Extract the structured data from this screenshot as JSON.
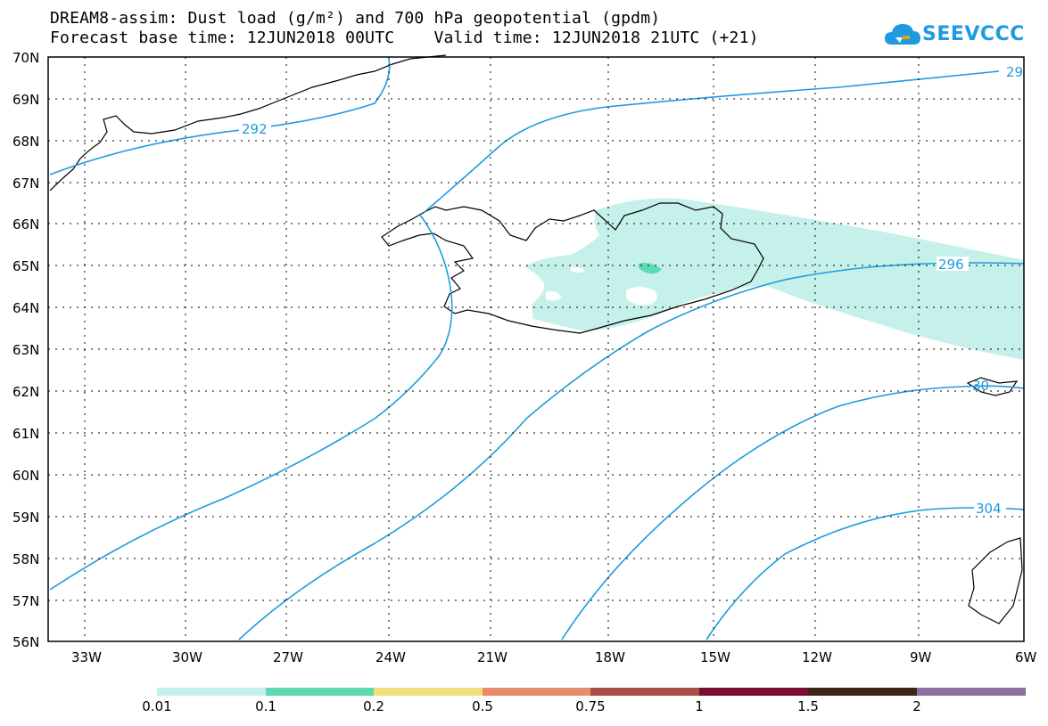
{
  "header": {
    "title_line1": "DREAM8-assim: Dust load (g/m²) and 700 hPa geopotential (gpdm)",
    "title_line2": "Forecast base time: 12JUN2018 00UTC    Valid time: 12JUN2018 21UTC (+21)"
  },
  "logo": {
    "text": "SEEVCCC",
    "icon": "cloud-icon",
    "color": "#1e9be0"
  },
  "map": {
    "lat_labels": [
      "70N",
      "69N",
      "68N",
      "67N",
      "66N",
      "65N",
      "64N",
      "63N",
      "62N",
      "61N",
      "60N",
      "59N",
      "58N",
      "57N",
      "56N"
    ],
    "lon_labels": [
      "33W",
      "30W",
      "27W",
      "24W",
      "21W",
      "18W",
      "15W",
      "12W",
      "9W",
      "6W"
    ],
    "contour_color": "#1e9be0",
    "contour_labels": [
      "292",
      "29",
      "296",
      "30",
      "304"
    ],
    "dust_colors": {
      "low": "#c6f0ea",
      "mid": "#5fd8b4"
    }
  },
  "colorbar": {
    "labels": [
      "0.01",
      "0.1",
      "0.2",
      "0.5",
      "0.75",
      "1",
      "1.5",
      "2"
    ],
    "colors": [
      "#c6f0ea",
      "#5fd8b4",
      "#f3e07a",
      "#e88c6a",
      "#a84f48",
      "#7a0b33",
      "#3d2619",
      "#8c6fa0"
    ]
  }
}
